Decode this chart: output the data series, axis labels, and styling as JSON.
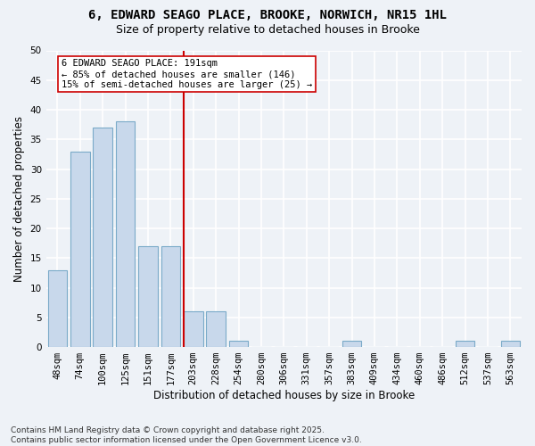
{
  "title": "6, EDWARD SEAGO PLACE, BROOKE, NORWICH, NR15 1HL",
  "subtitle": "Size of property relative to detached houses in Brooke",
  "xlabel": "Distribution of detached houses by size in Brooke",
  "ylabel": "Number of detached properties",
  "categories": [
    "48sqm",
    "74sqm",
    "100sqm",
    "125sqm",
    "151sqm",
    "177sqm",
    "203sqm",
    "228sqm",
    "254sqm",
    "280sqm",
    "306sqm",
    "331sqm",
    "357sqm",
    "383sqm",
    "409sqm",
    "434sqm",
    "460sqm",
    "486sqm",
    "512sqm",
    "537sqm",
    "563sqm"
  ],
  "values": [
    13,
    33,
    37,
    38,
    17,
    17,
    6,
    6,
    1,
    0,
    0,
    0,
    0,
    1,
    0,
    0,
    0,
    0,
    1,
    0,
    1
  ],
  "bar_color": "#c8d8eb",
  "bar_edge_color": "#7aaac8",
  "vline_color": "#cc0000",
  "vline_x_index": 5.57,
  "annotation_text": "6 EDWARD SEAGO PLACE: 191sqm\n← 85% of detached houses are smaller (146)\n15% of semi-detached houses are larger (25) →",
  "annotation_box_facecolor": "#ffffff",
  "annotation_box_edgecolor": "#cc0000",
  "ylim": [
    0,
    50
  ],
  "yticks": [
    0,
    5,
    10,
    15,
    20,
    25,
    30,
    35,
    40,
    45,
    50
  ],
  "footer_text": "Contains HM Land Registry data © Crown copyright and database right 2025.\nContains public sector information licensed under the Open Government Licence v3.0.",
  "background_color": "#eef2f7",
  "grid_color": "#ffffff",
  "title_fontsize": 10,
  "subtitle_fontsize": 9,
  "axis_label_fontsize": 8.5,
  "tick_fontsize": 7.5,
  "annotation_fontsize": 7.5,
  "footer_fontsize": 6.5
}
